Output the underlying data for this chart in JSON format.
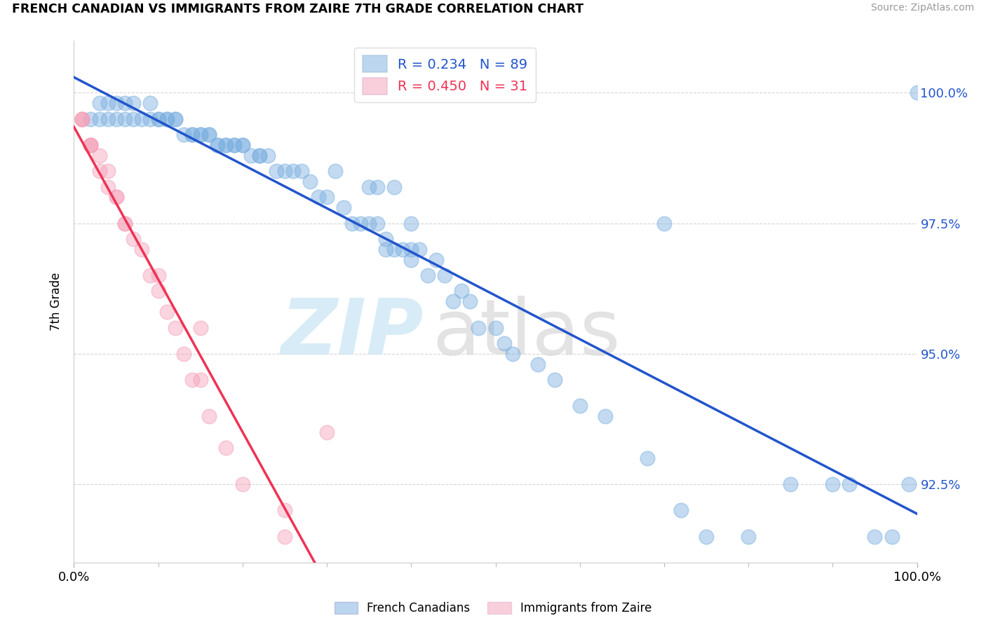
{
  "title": "FRENCH CANADIAN VS IMMIGRANTS FROM ZAIRE 7TH GRADE CORRELATION CHART",
  "source_text": "Source: ZipAtlas.com",
  "ylabel": "7th Grade",
  "legend_label1": "French Canadians",
  "legend_label2": "Immigrants from Zaire",
  "R_blue": 0.234,
  "N_blue": 89,
  "R_pink": 0.45,
  "N_pink": 31,
  "blue_color": "#7AAFE0",
  "pink_color": "#F4A0B8",
  "trendline_blue": "#2255CC",
  "trendline_pink": "#EE3355",
  "xlim": [
    0.0,
    1.0
  ],
  "ylim": [
    91.0,
    101.0
  ],
  "yticks": [
    92.5,
    95.0,
    97.5,
    100.0
  ],
  "ytick_labels": [
    "92.5%",
    "95.0%",
    "97.5%",
    "100.0%"
  ],
  "blue_x": [
    0.02,
    0.03,
    0.04,
    0.05,
    0.06,
    0.07,
    0.08,
    0.09,
    0.1,
    0.1,
    0.11,
    0.11,
    0.12,
    0.12,
    0.13,
    0.14,
    0.14,
    0.15,
    0.15,
    0.16,
    0.16,
    0.17,
    0.17,
    0.18,
    0.18,
    0.19,
    0.19,
    0.2,
    0.2,
    0.21,
    0.22,
    0.22,
    0.23,
    0.24,
    0.25,
    0.26,
    0.27,
    0.28,
    0.29,
    0.3,
    0.31,
    0.32,
    0.33,
    0.34,
    0.35,
    0.36,
    0.37,
    0.37,
    0.38,
    0.39,
    0.4,
    0.4,
    0.4,
    0.41,
    0.42,
    0.43,
    0.44,
    0.45,
    0.46,
    0.47,
    0.48,
    0.5,
    0.51,
    0.52,
    0.55,
    0.57,
    0.6,
    0.63,
    0.68,
    0.7,
    0.72,
    0.75,
    0.8,
    0.85,
    0.9,
    0.92,
    0.95,
    0.97,
    0.99,
    1.0,
    0.03,
    0.04,
    0.05,
    0.06,
    0.07,
    0.09,
    0.35,
    0.36,
    0.38
  ],
  "blue_y": [
    99.5,
    99.5,
    99.5,
    99.5,
    99.5,
    99.5,
    99.5,
    99.5,
    99.5,
    99.5,
    99.5,
    99.5,
    99.5,
    99.5,
    99.2,
    99.2,
    99.2,
    99.2,
    99.2,
    99.2,
    99.2,
    99.0,
    99.0,
    99.0,
    99.0,
    99.0,
    99.0,
    99.0,
    99.0,
    98.8,
    98.8,
    98.8,
    98.8,
    98.5,
    98.5,
    98.5,
    98.5,
    98.3,
    98.0,
    98.0,
    98.5,
    97.8,
    97.5,
    97.5,
    97.5,
    97.5,
    97.2,
    97.0,
    97.0,
    97.0,
    97.5,
    97.0,
    96.8,
    97.0,
    96.5,
    96.8,
    96.5,
    96.0,
    96.2,
    96.0,
    95.5,
    95.5,
    95.2,
    95.0,
    94.8,
    94.5,
    94.0,
    93.8,
    93.0,
    97.5,
    92.0,
    91.5,
    91.5,
    92.5,
    92.5,
    92.5,
    91.5,
    91.5,
    92.5,
    100.0,
    99.8,
    99.8,
    99.8,
    99.8,
    99.8,
    99.8,
    98.2,
    98.2,
    98.2
  ],
  "pink_x": [
    0.01,
    0.01,
    0.01,
    0.02,
    0.02,
    0.02,
    0.03,
    0.03,
    0.04,
    0.04,
    0.05,
    0.05,
    0.06,
    0.06,
    0.07,
    0.08,
    0.09,
    0.1,
    0.11,
    0.12,
    0.13,
    0.14,
    0.15,
    0.16,
    0.18,
    0.2,
    0.25,
    0.25,
    0.3,
    0.15,
    0.1
  ],
  "pink_y": [
    99.5,
    99.5,
    99.5,
    99.0,
    99.0,
    99.0,
    98.8,
    98.5,
    98.5,
    98.2,
    98.0,
    98.0,
    97.5,
    97.5,
    97.2,
    97.0,
    96.5,
    96.2,
    95.8,
    95.5,
    95.0,
    94.5,
    94.5,
    93.8,
    93.2,
    92.5,
    92.0,
    91.5,
    93.5,
    95.5,
    96.5
  ]
}
